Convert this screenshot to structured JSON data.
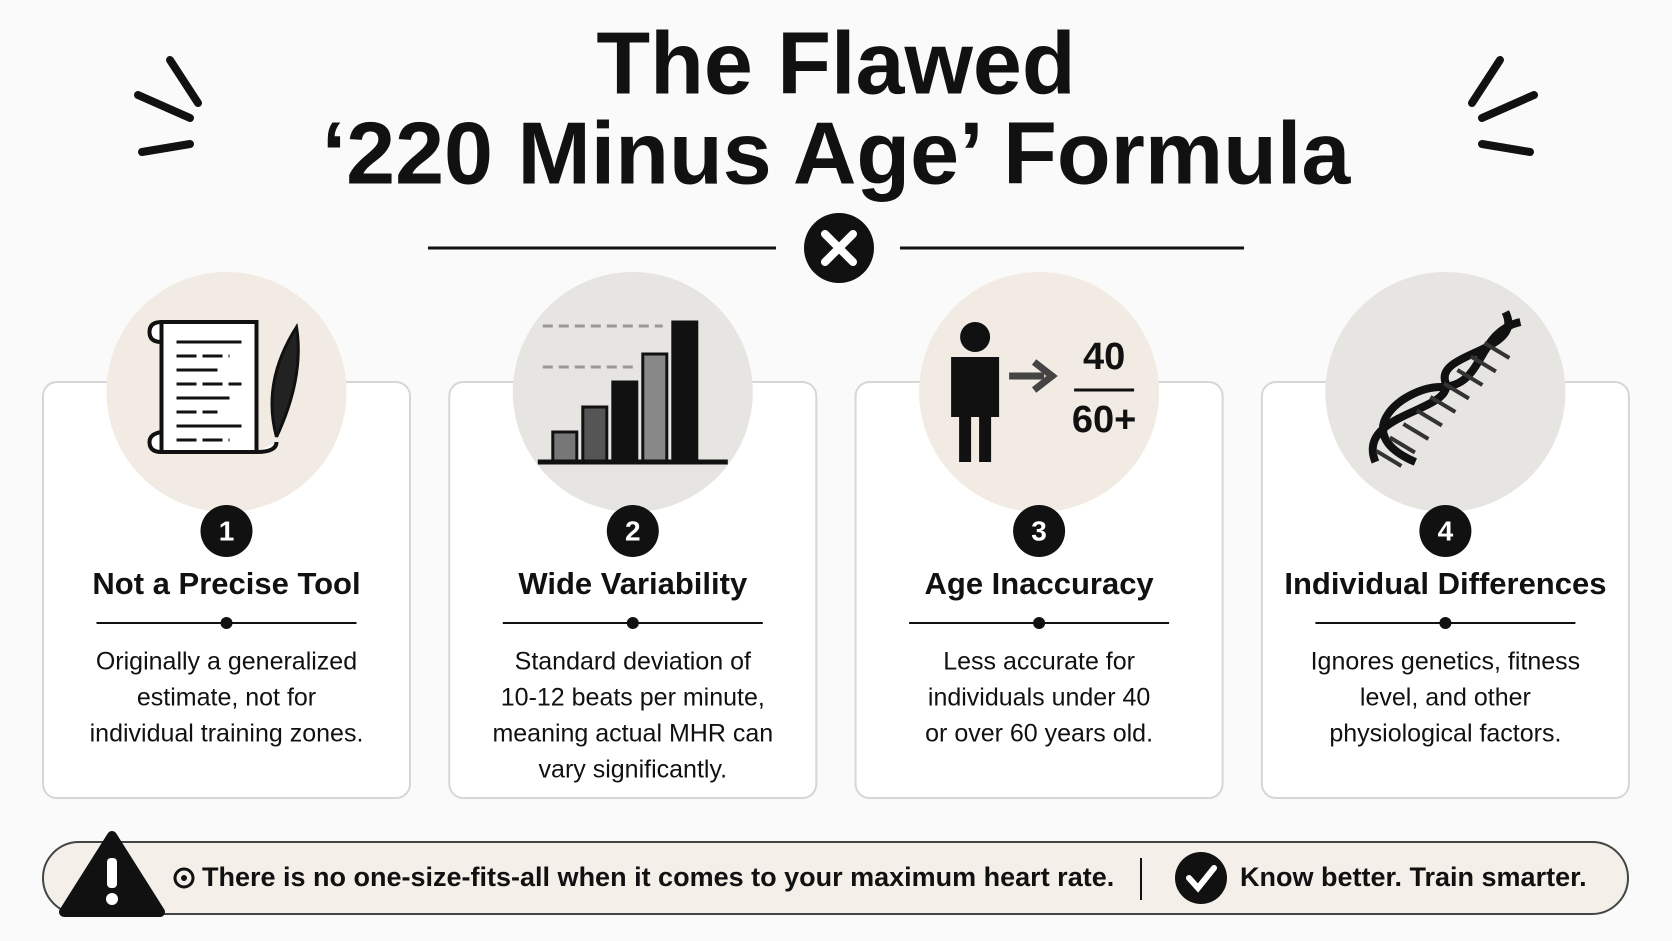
{
  "header": {
    "title_lines": [
      "The Flawed",
      "‘220 Minus Age’ Formula"
    ]
  },
  "cards": [
    {
      "number": "1",
      "heading": "Not a Precise Tool",
      "text_lines": [
        "Originally a generalized",
        "estimate, not for",
        "individual training zones."
      ]
    },
    {
      "number": "2",
      "heading": "Wide Variability",
      "text_lines": [
        "Standard deviation of",
        "10-12 beats per minute,",
        "meaning actual MHR can",
        "vary significantly."
      ]
    },
    {
      "number": "3",
      "heading": "Age Inaccuracy",
      "text_lines": [
        "Less accurate for",
        "individuals under 40",
        "or over 60 years old."
      ],
      "icon_labels": [
        "40",
        "60+"
      ]
    },
    {
      "number": "4",
      "heading": "Individual Differences",
      "text_lines": [
        "Ignores genetics, fitness",
        "level, and other",
        "physiological factors."
      ]
    }
  ],
  "footer": {
    "warning": "There is no one-size-fits-all when it comes to your maximum heart rate.",
    "motto": "Know better. Train smarter."
  }
}
